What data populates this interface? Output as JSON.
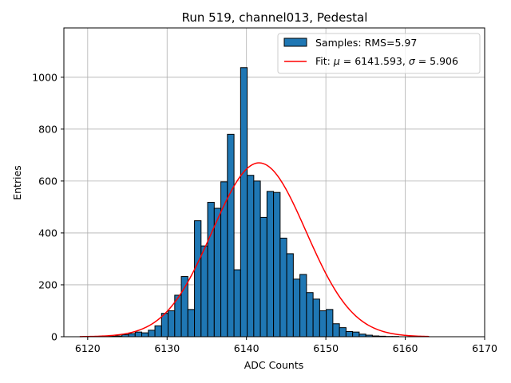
{
  "chart_data": {
    "type": "bar",
    "title": "Run 519, channel013, Pedestal",
    "xlabel": "ADC Counts",
    "ylabel": "Entries",
    "xlim": [
      6117,
      6170
    ],
    "ylim": [
      0,
      1190
    ],
    "xticks": [
      6120,
      6130,
      6140,
      6150,
      6160,
      6170
    ],
    "yticks": [
      0,
      200,
      400,
      600,
      800,
      1000
    ],
    "grid": true,
    "legend_position": "top-right",
    "histogram": {
      "name": "Samples",
      "label": "Samples: RMS=5.97",
      "color": "#1f77b4",
      "edgecolor": "#000000",
      "bin_width": 0.83,
      "bin_starts": [
        6121.0,
        6121.83,
        6122.66,
        6123.49,
        6124.32,
        6125.15,
        6125.98,
        6126.81,
        6127.64,
        6128.47,
        6129.3,
        6130.13,
        6130.96,
        6131.79,
        6132.62,
        6133.45,
        6134.28,
        6135.11,
        6135.94,
        6136.77,
        6137.6,
        6138.43,
        6139.26,
        6140.09,
        6140.92,
        6141.75,
        6142.58,
        6143.41,
        6144.24,
        6145.07,
        6145.9,
        6146.73,
        6147.56,
        6148.39,
        6149.22,
        6150.05,
        6150.88,
        6151.71,
        6152.54,
        6153.37,
        6154.2,
        6155.03,
        6155.86,
        6156.69,
        6157.52,
        6158.35,
        6159.18,
        6160.01,
        6160.84,
        6161.67
      ],
      "counts": [
        1,
        1,
        2,
        3,
        8,
        12,
        18,
        15,
        25,
        42,
        90,
        100,
        160,
        232,
        105,
        447,
        350,
        518,
        495,
        597,
        780,
        258,
        1037,
        622,
        600,
        460,
        560,
        556,
        380,
        320,
        222,
        240,
        170,
        145,
        100,
        105,
        50,
        35,
        20,
        18,
        10,
        6,
        3,
        2,
        1,
        1,
        0,
        0,
        0,
        0
      ]
    },
    "fit": {
      "name": "Fit",
      "label": "Fit: μ = 6141.593, σ = 5.906",
      "label_prefix": "Fit: ",
      "mu_symbol": "μ",
      "mu_text": " = 6141.593, ",
      "sigma_symbol": "σ",
      "sigma_text": " = 5.906",
      "mu": 6141.593,
      "sigma": 5.906,
      "amplitude": 670,
      "x_range": [
        6119,
        6163
      ],
      "color": "#ff0000"
    }
  }
}
